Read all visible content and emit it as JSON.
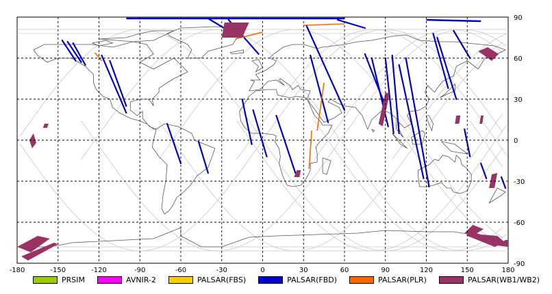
{
  "map": {
    "lon_ticks": [
      "-180",
      "-150",
      "-120",
      "-90",
      "-60",
      "-30",
      "0",
      "30",
      "60",
      "90",
      "120",
      "150",
      "180"
    ],
    "lat_ticks": [
      "90",
      "60",
      "30",
      "0",
      "-30",
      "-60",
      "-90"
    ],
    "lon_range": [
      -180,
      180
    ],
    "lat_range": [
      -90,
      90
    ],
    "grid": "dashed",
    "colors": {
      "coast": "#555555",
      "track": "#c8c8c8",
      "grid": "#000000"
    }
  },
  "legend": {
    "items": [
      {
        "label": "PRSIM",
        "color": "#99cc00"
      },
      {
        "label": "AVNIR-2",
        "color": "#ff00ff"
      },
      {
        "label": "PALSAR(FBS)",
        "color": "#ffcc00"
      },
      {
        "label": "PALSAR(FBD)",
        "color": "#0000cc"
      },
      {
        "label": "PALSAR(PLR)",
        "color": "#ff6600"
      },
      {
        "label": "PALSAR(WB1/WB2)",
        "color": "#993366"
      }
    ]
  },
  "coverage": {
    "fbd_strips": [
      [
        [
          -147,
          73
        ],
        [
          -137,
          58
        ]
      ],
      [
        [
          -143,
          72
        ],
        [
          -133,
          57
        ]
      ],
      [
        [
          -139,
          71
        ],
        [
          -130,
          55
        ]
      ],
      [
        [
          -118,
          62
        ],
        [
          -100,
          20
        ]
      ],
      [
        [
          -112,
          58
        ],
        [
          -100,
          25
        ]
      ],
      [
        [
          -70,
          12
        ],
        [
          -60,
          -17
        ]
      ],
      [
        [
          -47,
          -1
        ],
        [
          -40,
          -24
        ]
      ],
      [
        [
          -25,
          88
        ],
        [
          -3,
          63
        ]
      ],
      [
        [
          -40,
          89
        ],
        [
          -25,
          80
        ]
      ],
      [
        [
          -15,
          30
        ],
        [
          -8,
          -3
        ]
      ],
      [
        [
          -7,
          22
        ],
        [
          3,
          -12
        ]
      ],
      [
        [
          10,
          18
        ],
        [
          24,
          -24
        ]
      ],
      [
        [
          32,
          84
        ],
        [
          60,
          22
        ]
      ],
      [
        [
          35,
          62
        ],
        [
          48,
          13
        ]
      ],
      [
        [
          55,
          88
        ],
        [
          75,
          82
        ]
      ],
      [
        [
          75,
          63
        ],
        [
          90,
          25
        ]
      ],
      [
        [
          80,
          60
        ],
        [
          92,
          10
        ]
      ],
      [
        [
          90,
          60
        ],
        [
          96,
          5
        ]
      ],
      [
        [
          95,
          62
        ],
        [
          100,
          5
        ]
      ],
      [
        [
          100,
          55
        ],
        [
          118,
          -28
        ]
      ],
      [
        [
          105,
          60
        ],
        [
          122,
          -34
        ]
      ],
      [
        [
          125,
          78
        ],
        [
          136,
          38
        ]
      ],
      [
        [
          128,
          75
        ],
        [
          142,
          30
        ]
      ],
      [
        [
          140,
          80
        ],
        [
          152,
          60
        ]
      ],
      [
        [
          148,
          8
        ],
        [
          152,
          -12
        ]
      ],
      [
        [
          160,
          -17
        ],
        [
          164,
          -28
        ]
      ],
      [
        [
          175,
          -27
        ],
        [
          178,
          -35
        ]
      ]
    ],
    "plr_strips": [
      [
        [
          -123,
          64
        ],
        [
          -118,
          58
        ]
      ],
      [
        [
          30,
          84
        ],
        [
          60,
          85
        ]
      ],
      [
        [
          0,
          79
        ],
        [
          -20,
          74
        ]
      ],
      [
        [
          45,
          42
        ],
        [
          40,
          7
        ]
      ],
      [
        [
          36,
          7
        ],
        [
          34,
          -21
        ]
      ]
    ],
    "wb_strips": [
      [
        [
          -28,
          86
        ],
        [
          -10,
          86
        ],
        [
          -15,
          75
        ],
        [
          -30,
          75
        ]
      ],
      [
        [
          158,
          65
        ],
        [
          165,
          68
        ],
        [
          173,
          63
        ],
        [
          168,
          58
        ]
      ],
      [
        [
          -153,
          -75
        ],
        [
          -150,
          -76
        ],
        [
          -172,
          -88
        ],
        [
          -177,
          -85
        ]
      ],
      [
        [
          -156,
          -72
        ],
        [
          -170,
          -82
        ],
        [
          -180,
          -78
        ],
        [
          -165,
          -70
        ]
      ],
      [
        [
          -168,
          5
        ],
        [
          -166,
          -2
        ],
        [
          -169,
          -6
        ],
        [
          -171,
          0
        ]
      ],
      [
        [
          -160,
          12
        ],
        [
          -157,
          12
        ],
        [
          -158,
          9
        ],
        [
          -161,
          9
        ]
      ],
      [
        [
          90,
          35
        ],
        [
          93,
          34
        ],
        [
          88,
          10
        ],
        [
          85,
          12
        ]
      ],
      [
        [
          25,
          -22
        ],
        [
          28,
          -22
        ],
        [
          27,
          -27
        ],
        [
          23,
          -27
        ]
      ],
      [
        [
          154,
          -62
        ],
        [
          148,
          -68
        ],
        [
          154,
          -70
        ],
        [
          162,
          -65
        ]
      ],
      [
        [
          168,
          -25
        ],
        [
          172,
          -24
        ],
        [
          170,
          -35
        ],
        [
          166,
          -35
        ]
      ],
      [
        [
          150,
          -66
        ],
        [
          160,
          -69
        ],
        [
          172,
          -70
        ],
        [
          178,
          -75
        ],
        [
          170,
          -78
        ],
        [
          160,
          -74
        ],
        [
          150,
          -70
        ]
      ],
      [
        [
          178,
          -73
        ],
        [
          180,
          -73
        ],
        [
          180,
          -78
        ],
        [
          172,
          -77
        ]
      ],
      [
        [
          142,
          18
        ],
        [
          145,
          18
        ],
        [
          144,
          12
        ],
        [
          141,
          12
        ]
      ],
      [
        [
          160,
          18
        ],
        [
          162,
          18
        ],
        [
          161,
          12
        ],
        [
          159,
          12
        ]
      ]
    ],
    "top_band": [
      [
        [
          -100,
          89
        ],
        [
          60,
          89
        ]
      ],
      [
        [
          120,
          88
        ],
        [
          160,
          87
        ]
      ]
    ]
  }
}
